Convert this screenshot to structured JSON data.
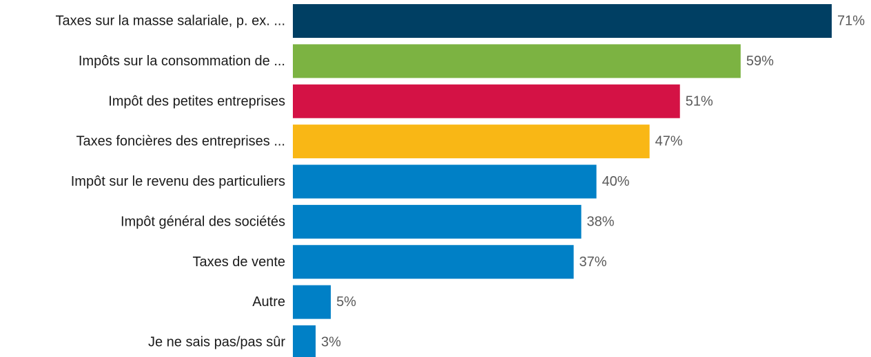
{
  "chart_data": {
    "type": "bar",
    "orientation": "horizontal",
    "categories": [
      "Taxes sur la masse salariale, p. ex. ...",
      "Impôts sur la consommation de ...",
      "Impôt des petites entreprises",
      "Taxes foncières des entreprises ...",
      "Impôt sur le revenu des particuliers",
      "Impôt général des sociétés",
      "Taxes de vente",
      "Autre",
      "Je ne sais pas/pas sûr"
    ],
    "values": [
      71,
      59,
      51,
      47,
      40,
      38,
      37,
      5,
      3
    ],
    "value_labels": [
      "71%",
      "59%",
      "51%",
      "47%",
      "40%",
      "38%",
      "37%",
      "5%",
      "3%"
    ],
    "colors": [
      "#003f63",
      "#7cb342",
      "#d41245",
      "#f9b715",
      "#0080c6",
      "#0080c6",
      "#0080c6",
      "#0080c6",
      "#0080c6"
    ],
    "title": "",
    "xlabel": "",
    "ylabel": "",
    "xlim": [
      0,
      71
    ],
    "grid": false,
    "legend": "none"
  }
}
